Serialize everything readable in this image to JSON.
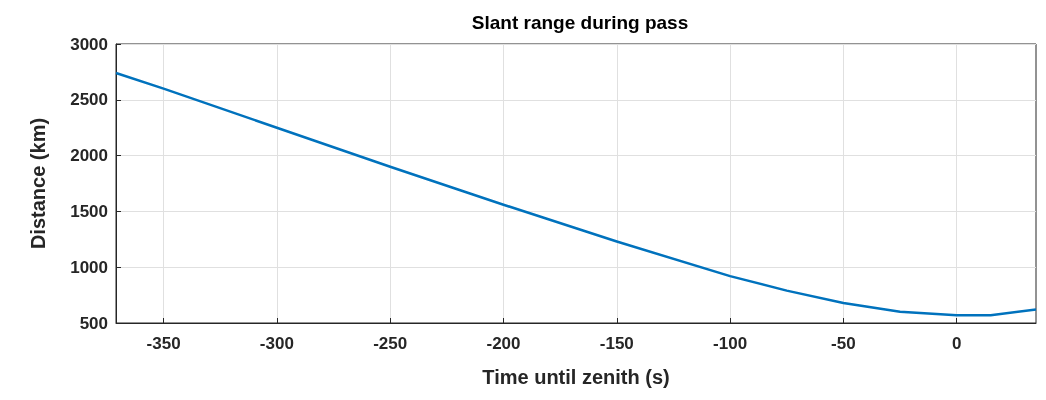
{
  "chart_data": {
    "type": "line",
    "title": "Slant range during pass",
    "xlabel": "Time until zenith (s)",
    "ylabel": "Distance (km)",
    "x": [
      -371,
      -350,
      -300,
      -250,
      -200,
      -150,
      -100,
      -75,
      -50,
      -25,
      0,
      15,
      35
    ],
    "series": [
      {
        "color": "#0072bd",
        "values": [
          2740,
          2600,
          2250,
          1900,
          1560,
          1230,
          920,
          790,
          680,
          600,
          570,
          570,
          620
        ]
      }
    ],
    "xlim": [
      -371,
      35
    ],
    "xticks": [
      -350,
      -300,
      -250,
      -200,
      -150,
      -100,
      -50,
      0
    ],
    "ylim": [
      500,
      3000
    ],
    "yticks": [
      500,
      1000,
      1500,
      2000,
      2500,
      3000
    ],
    "grid": true,
    "marker": "none",
    "line_style": "solid"
  }
}
